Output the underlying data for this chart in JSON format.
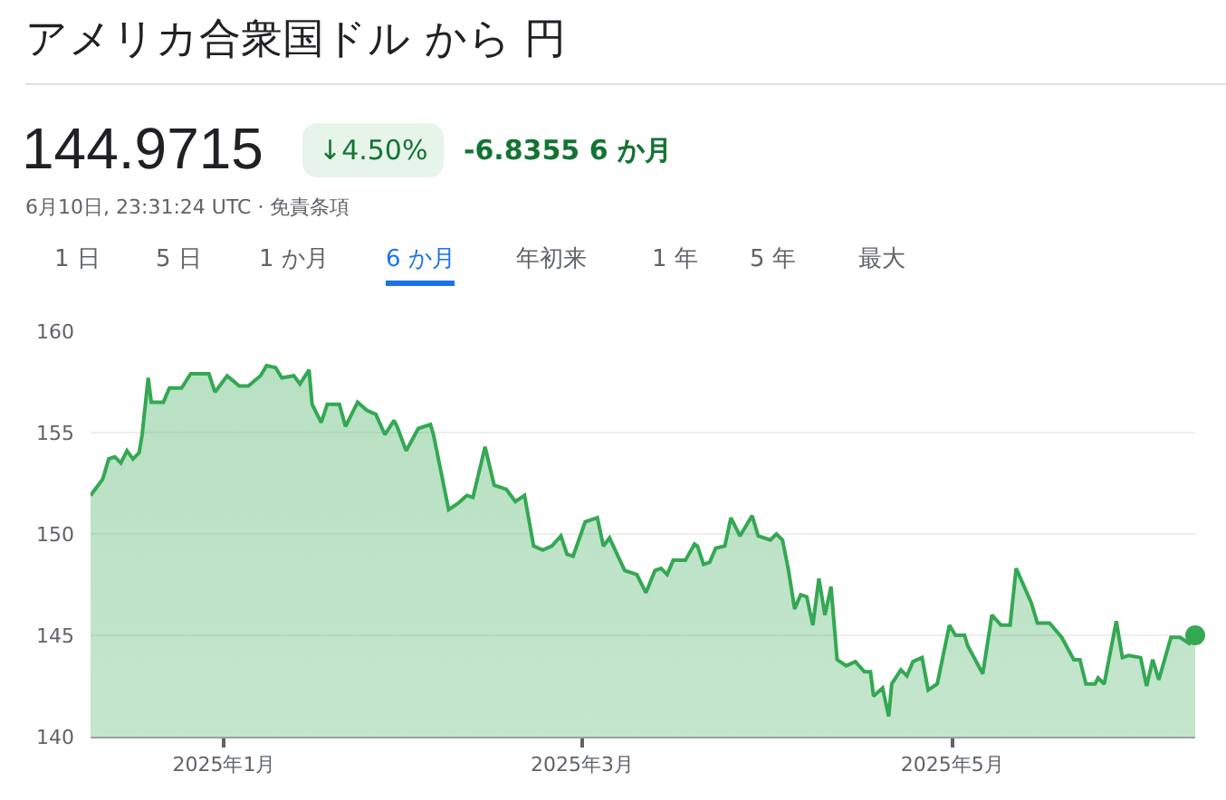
{
  "chart_data": {
    "type": "area",
    "title": "アメリカ合衆国ドル から 円",
    "subtitle": "144.9715",
    "annotations": [
      "↓4.50%",
      "-6.8355 6 か月",
      "6月10日, 23:31:24 UTC · 免責条項",
      "1 日",
      "5 日",
      "1 か月",
      "6 か月",
      "年初来",
      "1 年",
      "5 年",
      "最大"
    ],
    "series": [
      {
        "color": "#34a853",
        "x": [
          "2024-12-10",
          "2024-12-11T12:00",
          "2024-12-12",
          "2024-12-13",
          "2024-12-14",
          "2024-12-15",
          "2024-12-16",
          "2024-12-17",
          "2024-12-18",
          "2024-12-18T12:00",
          "2024-12-19T12:00",
          "2024-12-20",
          "2024-12-22",
          "2024-12-23",
          "2024-12-25",
          "2024-12-26T12:00",
          "2024-12-29T12:00",
          "2024-12-30T12:00",
          "2025-01-01T12:00",
          "2025-01-03T12:00",
          "2025-01-05",
          "2025-01-07",
          "2025-01-08",
          "2025-01-09T12:00",
          "2025-01-10T12:00",
          "2025-01-12T12:00",
          "2025-01-13T12:00",
          "2025-01-15",
          "2025-01-15T12:00",
          "2025-01-17",
          "2025-01-18",
          "2025-01-20",
          "2025-01-21",
          "2025-01-23",
          "2025-01-24T12:00",
          "2025-01-26",
          "2025-01-27T12:00",
          "2025-01-29",
          "2025-01-29T12:00",
          "2025-01-31",
          "2025-02-02",
          "2025-02-04",
          "2025-02-04T12:00",
          "2025-02-07",
          "2025-02-08T12:00",
          "2025-02-10",
          "2025-02-11",
          "2025-02-13",
          "2025-02-14T12:00",
          "2025-02-16T12:00",
          "2025-02-18",
          "2025-02-19T12:00",
          "2025-02-21",
          "2025-02-22T12:00",
          "2025-02-24",
          "2025-02-25T12:00",
          "2025-02-26T12:00",
          "2025-02-27T12:00",
          "2025-03-01T12:00",
          "2025-03-03T12:00",
          "2025-03-04T12:00",
          "2025-03-05T12:00",
          "2025-03-08",
          "2025-03-10",
          "2025-03-11T12:00",
          "2025-03-13",
          "2025-03-14",
          "2025-03-15",
          "2025-03-16",
          "2025-03-18",
          "2025-03-19T12:00",
          "2025-03-20",
          "2025-03-21",
          "2025-03-22",
          "2025-03-23",
          "2025-03-24T12:00",
          "2025-03-25T12:00",
          "2025-03-27",
          "2025-03-29",
          "2025-03-30",
          "2025-04-01",
          "2025-04-02",
          "2025-04-03",
          "2025-04-04",
          "2025-04-05",
          "2025-04-06",
          "2025-04-07",
          "2025-04-08",
          "2025-04-09",
          "2025-04-10",
          "2025-04-11",
          "2025-04-12",
          "2025-04-13T12:00",
          "2025-04-15",
          "2025-04-16T12:00",
          "2025-04-17T12:00",
          "2025-04-18",
          "2025-04-19T12:00",
          "2025-04-20T12:00",
          "2025-04-21",
          "2025-04-22T12:00",
          "2025-04-23T12:00",
          "2025-04-24T12:00",
          "2025-04-26",
          "2025-04-27",
          "2025-04-28T12:00",
          "2025-04-30T12:00",
          "2025-05-01T12:00",
          "2025-05-03",
          "2025-05-03T12:00",
          "2025-05-06",
          "2025-05-07T12:00",
          "2025-05-09",
          "2025-05-10T12:00",
          "2025-05-11T12:00",
          "2025-05-14",
          "2025-05-15",
          "2025-05-17",
          "2025-05-19",
          "2025-05-21",
          "2025-05-22",
          "2025-05-23",
          "2025-05-24T12:00",
          "2025-05-25",
          "2025-05-26",
          "2025-05-28",
          "2025-05-29",
          "2025-05-30",
          "2025-06-01",
          "2025-06-02",
          "2025-06-03",
          "2025-06-04",
          "2025-06-06",
          "2025-06-07T12:00",
          "2025-06-09",
          "2025-06-10"
        ],
        "values": [
          151.9,
          152.5,
          152.7,
          153.7,
          153.8,
          153.5,
          154.1,
          153.7,
          154.0,
          154.9,
          157.7,
          156.5,
          156.5,
          157.2,
          157.2,
          157.9,
          157.9,
          157.0,
          157.8,
          157.3,
          157.3,
          157.8,
          158.3,
          158.2,
          157.7,
          157.8,
          157.4,
          158.1,
          156.4,
          155.5,
          156.4,
          156.4,
          155.3,
          156.5,
          156.1,
          155.9,
          154.9,
          155.6,
          155.3,
          154.1,
          155.2,
          155.4,
          154.9,
          151.2,
          151.5,
          151.9,
          151.8,
          154.3,
          152.4,
          152.2,
          151.6,
          151.9,
          149.4,
          149.2,
          149.4,
          149.9,
          149.0,
          148.9,
          150.6,
          150.8,
          149.4,
          149.8,
          148.2,
          148.0,
          147.1,
          148.2,
          148.3,
          148.0,
          148.7,
          148.7,
          149.5,
          149.4,
          148.5,
          148.6,
          149.3,
          149.4,
          150.8,
          149.9,
          150.9,
          149.9,
          149.7,
          150.0,
          149.7,
          148.2,
          146.3,
          147.0,
          146.9,
          145.5,
          147.8,
          146.0,
          147.4,
          143.8,
          143.5,
          143.7,
          143.2,
          143.2,
          142.0,
          142.4,
          141.0,
          142.6,
          143.3,
          143.0,
          143.7,
          143.9,
          142.3,
          142.6,
          145.5,
          145.0,
          145.0,
          144.5,
          143.1,
          146.0,
          145.5,
          145.5,
          148.3,
          146.6,
          145.6,
          145.6,
          144.9,
          143.8,
          143.8,
          142.6,
          142.6,
          142.9,
          142.6,
          145.7,
          143.9,
          144.0,
          143.9,
          142.5,
          143.8,
          142.8,
          144.9,
          144.9,
          144.6,
          145.0
        ]
      },
      {
        "type": "scatter",
        "color": "#34a853",
        "marker": "circle",
        "x": [
          "2025-06-10"
        ],
        "values": [
          145.0
        ]
      }
    ],
    "xlim": [
      "2024-12-10",
      "2025-06-10"
    ],
    "xticks": [
      {
        "value": "2025-01-01",
        "label": "2025年1月"
      },
      {
        "value": "2025-03-01",
        "label": "2025年3月"
      },
      {
        "value": "2025-05-01",
        "label": "2025年5月"
      }
    ],
    "ylim": [
      140,
      160
    ],
    "yticks": [
      140,
      145,
      150,
      155,
      160
    ],
    "grid": "y"
  }
}
